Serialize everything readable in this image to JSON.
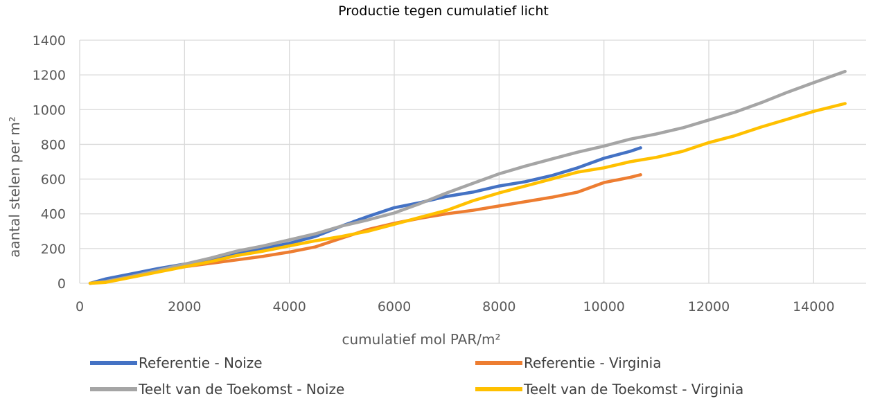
{
  "chart_data": {
    "type": "line",
    "title": "Productie tegen cumulatief licht",
    "xlabel": "cumulatief  mol PAR/m²",
    "ylabel": "aantal stelen per m²",
    "xlim": [
      0,
      15000
    ],
    "ylim": [
      0,
      1400
    ],
    "xticks": [
      0,
      2000,
      4000,
      6000,
      8000,
      10000,
      12000,
      14000
    ],
    "yticks": [
      0,
      200,
      400,
      600,
      800,
      1000,
      1200,
      1400
    ],
    "grid": true,
    "legend_position": "bottom",
    "series": [
      {
        "name": "Referentie - Noize",
        "color": "#4472C4",
        "x": [
          200,
          500,
          1000,
          1500,
          2000,
          2500,
          3000,
          3500,
          4000,
          4500,
          5000,
          5500,
          6000,
          6500,
          7000,
          7500,
          8000,
          8500,
          9000,
          9500,
          10000,
          10500,
          10700
        ],
        "y": [
          0,
          25,
          55,
          85,
          110,
          140,
          170,
          200,
          230,
          270,
          330,
          385,
          435,
          465,
          500,
          525,
          560,
          585,
          620,
          665,
          720,
          760,
          780
        ]
      },
      {
        "name": "Referentie - Virginia",
        "color": "#ED7D31",
        "x": [
          200,
          500,
          1000,
          1500,
          2000,
          2500,
          3000,
          3500,
          4000,
          4500,
          5000,
          5500,
          6000,
          6500,
          7000,
          7500,
          8000,
          8500,
          9000,
          9500,
          10000,
          10500,
          10700
        ],
        "y": [
          0,
          10,
          40,
          70,
          95,
          115,
          135,
          155,
          180,
          210,
          260,
          310,
          345,
          375,
          400,
          420,
          445,
          470,
          495,
          525,
          580,
          610,
          625
        ]
      },
      {
        "name": "Teelt van de Toekomst - Noize",
        "color": "#A5A5A5",
        "x": [
          200,
          500,
          1000,
          1500,
          2000,
          2500,
          3000,
          3500,
          4000,
          4500,
          5000,
          5500,
          6000,
          6500,
          7000,
          7500,
          8000,
          8500,
          9000,
          9500,
          10000,
          10500,
          11000,
          11500,
          12000,
          12500,
          13000,
          13500,
          14000,
          14600
        ],
        "y": [
          0,
          10,
          40,
          75,
          110,
          145,
          185,
          215,
          250,
          285,
          330,
          365,
          405,
          460,
          520,
          575,
          630,
          675,
          715,
          755,
          790,
          830,
          860,
          895,
          940,
          985,
          1040,
          1100,
          1155,
          1220
        ]
      },
      {
        "name": "Teelt van de Toekomst - Virginia",
        "color": "#FFC000",
        "x": [
          200,
          500,
          1000,
          1500,
          2000,
          2500,
          3000,
          3500,
          4000,
          4500,
          5000,
          5500,
          6000,
          6500,
          7000,
          7500,
          8000,
          8500,
          9000,
          9500,
          10000,
          10500,
          11000,
          11500,
          12000,
          12500,
          13000,
          13500,
          14000,
          14600
        ],
        "y": [
          0,
          5,
          35,
          65,
          95,
          125,
          160,
          185,
          215,
          245,
          270,
          300,
          340,
          380,
          420,
          475,
          520,
          560,
          600,
          640,
          665,
          700,
          725,
          760,
          810,
          850,
          900,
          945,
          990,
          1035
        ]
      }
    ]
  }
}
